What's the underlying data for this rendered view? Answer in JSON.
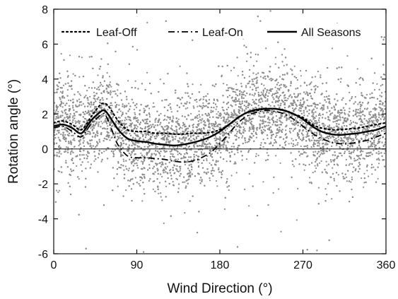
{
  "chart_data": {
    "type": "scatter",
    "xlabel": "Wind Direction (°)",
    "ylabel": "Rotation angle (°)",
    "xlim": [
      0,
      360
    ],
    "ylim": [
      -6,
      8
    ],
    "xticks": [
      0,
      90,
      180,
      270,
      360
    ],
    "yticks": [
      -6,
      -4,
      -2,
      0,
      2,
      4,
      6,
      8
    ],
    "xtick_labels": [
      "0",
      "90",
      "180",
      "270",
      "360"
    ],
    "ytick_labels": [
      "-6",
      "-4",
      "-2",
      "0",
      "2",
      "4",
      "6",
      "8"
    ],
    "zero_line": true,
    "grid": false,
    "legend_position": "top",
    "scatter_color": "#8c8c8c",
    "scatter_description_points": 9000,
    "series": [
      {
        "name": "Leaf-Off",
        "style": "dotted",
        "x": [
          0,
          10,
          20,
          30,
          40,
          50,
          55,
          60,
          70,
          80,
          90,
          100,
          110,
          120,
          130,
          140,
          150,
          160,
          170,
          180,
          190,
          200,
          210,
          220,
          230,
          240,
          250,
          260,
          270,
          280,
          290,
          300,
          310,
          320,
          330,
          340,
          350,
          360
        ],
        "y": [
          1.5,
          1.6,
          1.4,
          1.1,
          1.8,
          2.5,
          2.6,
          2.4,
          1.6,
          1.1,
          1.0,
          1.0,
          0.9,
          0.9,
          0.85,
          0.85,
          0.9,
          0.9,
          0.95,
          1.1,
          1.4,
          1.8,
          2.1,
          2.2,
          2.3,
          2.3,
          2.2,
          2.0,
          1.8,
          1.4,
          1.2,
          1.1,
          1.1,
          1.15,
          1.2,
          1.3,
          1.4,
          1.5
        ]
      },
      {
        "name": "Leaf-On",
        "style": "dash-dot",
        "x": [
          0,
          10,
          20,
          30,
          40,
          50,
          55,
          60,
          65,
          70,
          80,
          90,
          100,
          110,
          120,
          130,
          140,
          150,
          160,
          170,
          180,
          190,
          200,
          210,
          220,
          230,
          240,
          250,
          260,
          270,
          280,
          290,
          300,
          310,
          320,
          330,
          340,
          350,
          360
        ],
        "y": [
          1.2,
          1.3,
          1.0,
          0.7,
          1.4,
          1.9,
          2.0,
          1.5,
          0.8,
          0.2,
          -0.4,
          -0.5,
          -0.5,
          -0.55,
          -0.6,
          -0.7,
          -0.75,
          -0.7,
          -0.5,
          -0.2,
          0.3,
          0.9,
          1.5,
          1.9,
          2.1,
          2.2,
          2.15,
          2.0,
          1.7,
          1.3,
          0.9,
          0.6,
          0.4,
          0.3,
          0.3,
          0.4,
          0.5,
          0.7,
          0.9
        ]
      },
      {
        "name": "All Seasons",
        "style": "solid",
        "x": [
          0,
          10,
          20,
          30,
          40,
          50,
          55,
          60,
          70,
          80,
          90,
          100,
          110,
          120,
          130,
          140,
          150,
          160,
          170,
          180,
          190,
          200,
          210,
          220,
          230,
          240,
          250,
          260,
          270,
          280,
          290,
          300,
          310,
          320,
          330,
          340,
          350,
          360
        ],
        "y": [
          1.3,
          1.4,
          1.2,
          0.9,
          1.6,
          2.1,
          2.2,
          1.9,
          1.1,
          0.6,
          0.45,
          0.4,
          0.3,
          0.25,
          0.2,
          0.25,
          0.35,
          0.5,
          0.7,
          1.0,
          1.4,
          1.8,
          2.1,
          2.25,
          2.3,
          2.3,
          2.2,
          2.0,
          1.7,
          1.3,
          1.0,
          0.85,
          0.8,
          0.85,
          0.9,
          1.0,
          1.1,
          1.3
        ]
      }
    ]
  }
}
